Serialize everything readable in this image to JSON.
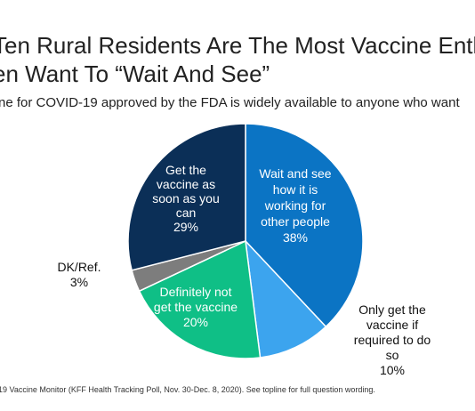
{
  "title_line1": "Ten Rural Residents Are The Most Vaccine Enth",
  "title_line2": "en Want To “Wait And See”",
  "subtitle": "ne for COVID-19 approved by the FDA is widely available to anyone who want",
  "source": "19 Vaccine Monitor (KFF Health Tracking Poll, Nov. 30-Dec. 8, 2020). See topline for full question wording.",
  "chart_data": {
    "type": "pie",
    "slices": [
      {
        "label": [
          "Wait and see",
          "how it is",
          "working for",
          "other people"
        ],
        "value": 38,
        "value_label": "38%",
        "color": "#0b74c4",
        "label_color": "#ffffff",
        "inside": true
      },
      {
        "label": [
          "Only get the",
          "vaccine if",
          "required to do",
          "so"
        ],
        "value": 10,
        "value_label": "10%",
        "color": "#3ca4ee",
        "label_color": "#111111",
        "inside": false
      },
      {
        "label": [
          "Definitely not",
          "get the vaccine"
        ],
        "value": 20,
        "value_label": "20%",
        "color": "#0fbf86",
        "label_color": "#ffffff",
        "inside": true
      },
      {
        "label": [
          "DK/Ref."
        ],
        "value": 3,
        "value_label": "3%",
        "color": "#7d7d7d",
        "label_color": "#111111",
        "inside": false
      },
      {
        "label": [
          "Get the",
          "vaccine as",
          "soon as you",
          "can"
        ],
        "value": 29,
        "value_label": "29%",
        "color": "#0b2f57",
        "label_color": "#ffffff",
        "inside": true
      }
    ]
  }
}
